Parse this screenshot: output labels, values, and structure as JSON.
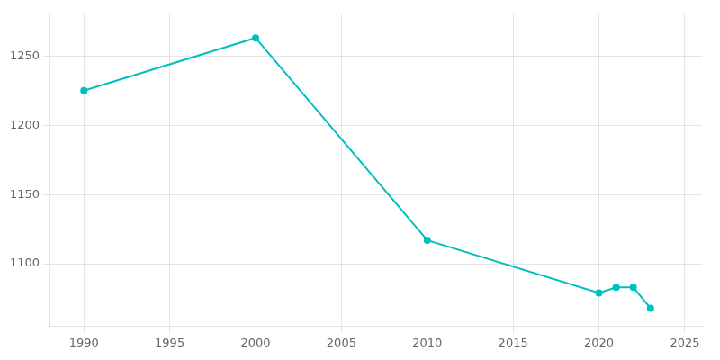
{
  "chart_data": {
    "type": "line",
    "x": [
      1990,
      2000,
      2010,
      2020,
      2021,
      2022,
      2023
    ],
    "values": [
      1225,
      1263,
      1117,
      1079,
      1083,
      1083,
      1068
    ],
    "color": "#00BFBF",
    "marker": "circle",
    "xlim": [
      1988,
      2026
    ],
    "ylim": [
      1055,
      1280
    ],
    "xticks": [
      1990,
      1995,
      2000,
      2005,
      2010,
      2015,
      2020,
      2025
    ],
    "yticks": [
      1100,
      1150,
      1200,
      1250
    ],
    "grid": true
  }
}
